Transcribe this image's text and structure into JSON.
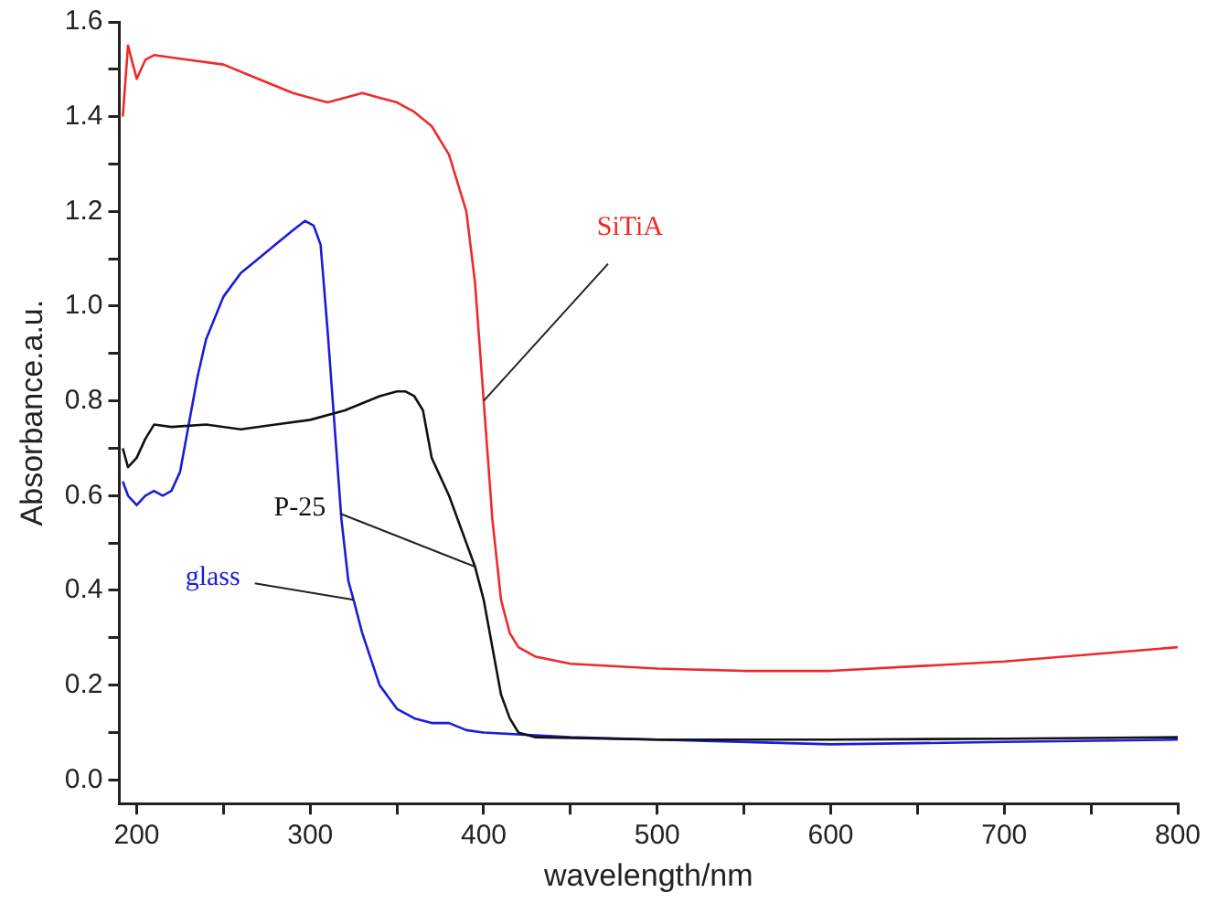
{
  "chart_data": {
    "type": "line",
    "xlabel": "wavelength/nm",
    "ylabel": "Absorbance.a.u.",
    "xlim": [
      190,
      800
    ],
    "ylim": [
      -0.05,
      1.6
    ],
    "xticks": [
      200,
      {
        "value": 250,
        "label": null
      },
      300,
      {
        "value": 350,
        "label": null
      },
      400,
      {
        "value": 450,
        "label": null
      },
      500,
      {
        "value": 550,
        "label": null
      },
      600,
      {
        "value": 650,
        "label": null
      },
      700,
      {
        "value": 750,
        "label": null
      },
      800
    ],
    "yticks": [
      {
        "value": 0,
        "label": "0.0"
      },
      {
        "value": 0.1,
        "label": null
      },
      0.2,
      {
        "value": 0.3,
        "label": null
      },
      0.4,
      {
        "value": 0.5,
        "label": null
      },
      0.6,
      {
        "value": 0.7,
        "label": null
      },
      0.8,
      {
        "value": 0.9,
        "label": null
      },
      {
        "value": 1,
        "label": "1.0"
      },
      {
        "value": 1.1,
        "label": null
      },
      1.2,
      {
        "value": 1.3,
        "label": null
      },
      1.4,
      {
        "value": 1.5,
        "label": null
      },
      1.6
    ],
    "grid": false,
    "legend": false,
    "marker": "none",
    "line_style": "solid",
    "series": [
      {
        "name": "SiTiA",
        "color": "#ee2a2a",
        "x": [
          192,
          195,
          200,
          205,
          210,
          230,
          250,
          270,
          290,
          300,
          310,
          320,
          330,
          340,
          350,
          360,
          370,
          380,
          390,
          395,
          400,
          405,
          410,
          415,
          420,
          430,
          450,
          500,
          550,
          600,
          650,
          700,
          750,
          800
        ],
        "values": [
          1.4,
          1.55,
          1.48,
          1.52,
          1.53,
          1.52,
          1.51,
          1.48,
          1.45,
          1.44,
          1.43,
          1.44,
          1.45,
          1.44,
          1.43,
          1.41,
          1.38,
          1.32,
          1.2,
          1.05,
          0.8,
          0.55,
          0.38,
          0.31,
          0.28,
          0.26,
          0.245,
          0.235,
          0.23,
          0.23,
          0.24,
          0.25,
          0.265,
          0.28
        ]
      },
      {
        "name": "P-25",
        "color": "#111111",
        "x": [
          192,
          195,
          200,
          205,
          210,
          220,
          240,
          260,
          280,
          300,
          320,
          340,
          350,
          355,
          360,
          365,
          370,
          380,
          390,
          395,
          400,
          405,
          410,
          415,
          420,
          430,
          500,
          600,
          700,
          800
        ],
        "values": [
          0.7,
          0.66,
          0.68,
          0.72,
          0.75,
          0.745,
          0.75,
          0.74,
          0.75,
          0.76,
          0.78,
          0.81,
          0.82,
          0.82,
          0.81,
          0.78,
          0.68,
          0.6,
          0.5,
          0.45,
          0.38,
          0.28,
          0.18,
          0.13,
          0.1,
          0.09,
          0.085,
          0.085,
          0.087,
          0.09
        ]
      },
      {
        "name": "glass",
        "color": "#1c1cd8",
        "x": [
          192,
          195,
          200,
          205,
          210,
          215,
          220,
          225,
          230,
          235,
          240,
          250,
          260,
          270,
          280,
          290,
          297,
          302,
          306,
          310,
          315,
          318,
          322,
          325,
          330,
          340,
          350,
          360,
          370,
          380,
          390,
          400,
          450,
          500,
          600,
          700,
          800
        ],
        "values": [
          0.63,
          0.6,
          0.58,
          0.6,
          0.61,
          0.6,
          0.61,
          0.65,
          0.75,
          0.85,
          0.93,
          1.02,
          1.07,
          1.1,
          1.13,
          1.16,
          1.18,
          1.17,
          1.13,
          0.95,
          0.7,
          0.55,
          0.42,
          0.38,
          0.31,
          0.2,
          0.15,
          0.13,
          0.12,
          0.12,
          0.105,
          0.1,
          0.09,
          0.085,
          0.075,
          0.08,
          0.085
        ]
      }
    ]
  }
}
